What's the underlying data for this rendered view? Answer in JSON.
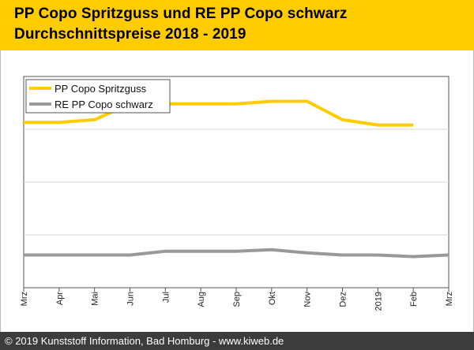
{
  "header": {
    "line1": "PP Copo Spritzguss und RE PP Copo schwarz",
    "line2": "Durchschnittspreise 2018 - 2019"
  },
  "footer": {
    "copyright": "© 2019 Kunststoff Information, Bad Homburg - www.kiweb.de"
  },
  "colors": {
    "header_bg": "#ffcc00",
    "series1": "#ffcc00",
    "series2": "#999999",
    "footer_bg": "#3c3c3c"
  },
  "chart_data": {
    "type": "line",
    "title": "PP Copo Spritzguss und RE PP Copo schwarz Durchschnittspreise 2018 - 2019",
    "xlabel": "",
    "ylabel": "",
    "grid": true,
    "legend": "top-left",
    "categories": [
      "Mrz",
      "Apr",
      "Mai",
      "Jun",
      "Jul",
      "Aug",
      "Sep",
      "Okt",
      "Nov",
      "Dez",
      "2019",
      "Feb",
      "Mrz"
    ],
    "ylim": [
      0,
      4
    ],
    "series": [
      {
        "name": "PP Copo Spritzguss",
        "color": "#ffcc00",
        "values": [
          3.13,
          3.13,
          3.18,
          3.48,
          3.48,
          3.48,
          3.48,
          3.53,
          3.53,
          3.18,
          3.08,
          3.08,
          null
        ]
      },
      {
        "name": "RE PP Copo schwarz",
        "color": "#999999",
        "values": [
          0.62,
          0.62,
          0.62,
          0.62,
          0.69,
          0.69,
          0.69,
          0.72,
          0.66,
          0.62,
          0.62,
          0.59,
          0.62
        ]
      }
    ]
  }
}
